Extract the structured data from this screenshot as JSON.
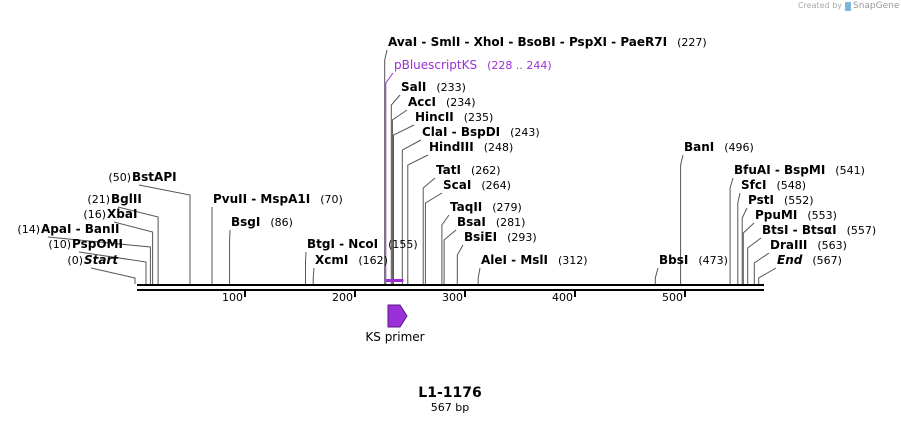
{
  "credit": {
    "prefix": "Created by",
    "brand": "SnapGene"
  },
  "title": "L1-1176",
  "subtitle": "567 bp",
  "ruler": [
    "100",
    "200",
    "300",
    "400",
    "500"
  ],
  "feature": "KS primer",
  "sites": [
    {
      "name": "AvaI - SmlI - XhoI - BsoBI - PspXI - PaeR7I",
      "position": "(227)"
    },
    {
      "name": "pBluescriptKS",
      "position": "(228 .. 244)"
    },
    {
      "name": "SalI",
      "position": "(233)"
    },
    {
      "name": "AccI",
      "position": "(234)"
    },
    {
      "name": "HincII",
      "position": "(235)"
    },
    {
      "name": "ClaI - BspDI",
      "position": "(243)"
    },
    {
      "name": "HindIII",
      "position": "(248)"
    },
    {
      "name": "TatI",
      "position": "(262)"
    },
    {
      "name": "ScaI",
      "position": "(264)"
    },
    {
      "name": "TaqII",
      "position": "(279)"
    },
    {
      "name": "BsaI",
      "position": "(281)"
    },
    {
      "name": "BsiEI",
      "position": "(293)"
    },
    {
      "name": "AleI - MslI",
      "position": "(312)"
    },
    {
      "name": "BstAPI",
      "position": "(50)"
    },
    {
      "name": "BglII",
      "position": "(21)"
    },
    {
      "name": "XbaI",
      "position": "(16)"
    },
    {
      "name": "ApaI - BanII",
      "position": "(14)"
    },
    {
      "name": "PspOMI",
      "position": "(10)"
    },
    {
      "name": "Start",
      "position": "(0)"
    },
    {
      "name": "PvuII - MspA1I",
      "position": "(70)"
    },
    {
      "name": "BsgI",
      "position": "(86)"
    },
    {
      "name": "BtgI - NcoI",
      "position": "(155)"
    },
    {
      "name": "XcmI",
      "position": "(162)"
    },
    {
      "name": "BanI",
      "position": "(496)"
    },
    {
      "name": "BfuAI - BspMI",
      "position": "(541)"
    },
    {
      "name": "SfcI",
      "position": "(548)"
    },
    {
      "name": "PstI",
      "position": "(552)"
    },
    {
      "name": "PpuMI",
      "position": "(553)"
    },
    {
      "name": "BtsI - BtsαI",
      "position": "(557)"
    },
    {
      "name": "DraIII",
      "position": "(563)"
    },
    {
      "name": "End",
      "position": "(567)"
    },
    {
      "name": "BbsI",
      "position": "(473)"
    }
  ]
}
